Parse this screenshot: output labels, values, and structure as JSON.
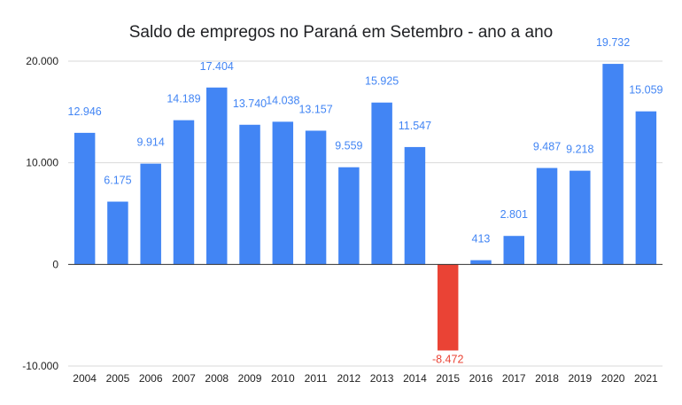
{
  "chart_data": {
    "type": "bar",
    "title": "Saldo de empregos no Paraná em Setembro - ano a ano",
    "xlabel": "",
    "ylabel": "",
    "categories": [
      "2004",
      "2005",
      "2006",
      "2007",
      "2008",
      "2009",
      "2010",
      "2011",
      "2012",
      "2013",
      "2014",
      "2015",
      "2016",
      "2017",
      "2018",
      "2019",
      "2020",
      "2021"
    ],
    "values": [
      12946,
      6175,
      9914,
      14189,
      17404,
      13740,
      14038,
      13157,
      9559,
      15925,
      11547,
      -8472,
      413,
      2801,
      9487,
      9218,
      19732,
      15059
    ],
    "data_labels": [
      "12.946",
      "6.175",
      "9.914",
      "14.189",
      "17.404",
      "13.740",
      "14.038",
      "13.157",
      "9.559",
      "15.925",
      "11.547",
      "-8.472",
      "413",
      "2.801",
      "9.487",
      "9.218",
      "19.732",
      "15.059"
    ],
    "ylim": [
      -10000,
      20000
    ],
    "yticks": [
      -10000,
      0,
      10000,
      20000
    ],
    "ytick_labels": [
      "-10.000",
      "0",
      "10.000",
      "20.000"
    ],
    "grid": true,
    "legend": "none",
    "colors": {
      "positive": "#4285f4",
      "negative": "#ea4335"
    }
  }
}
